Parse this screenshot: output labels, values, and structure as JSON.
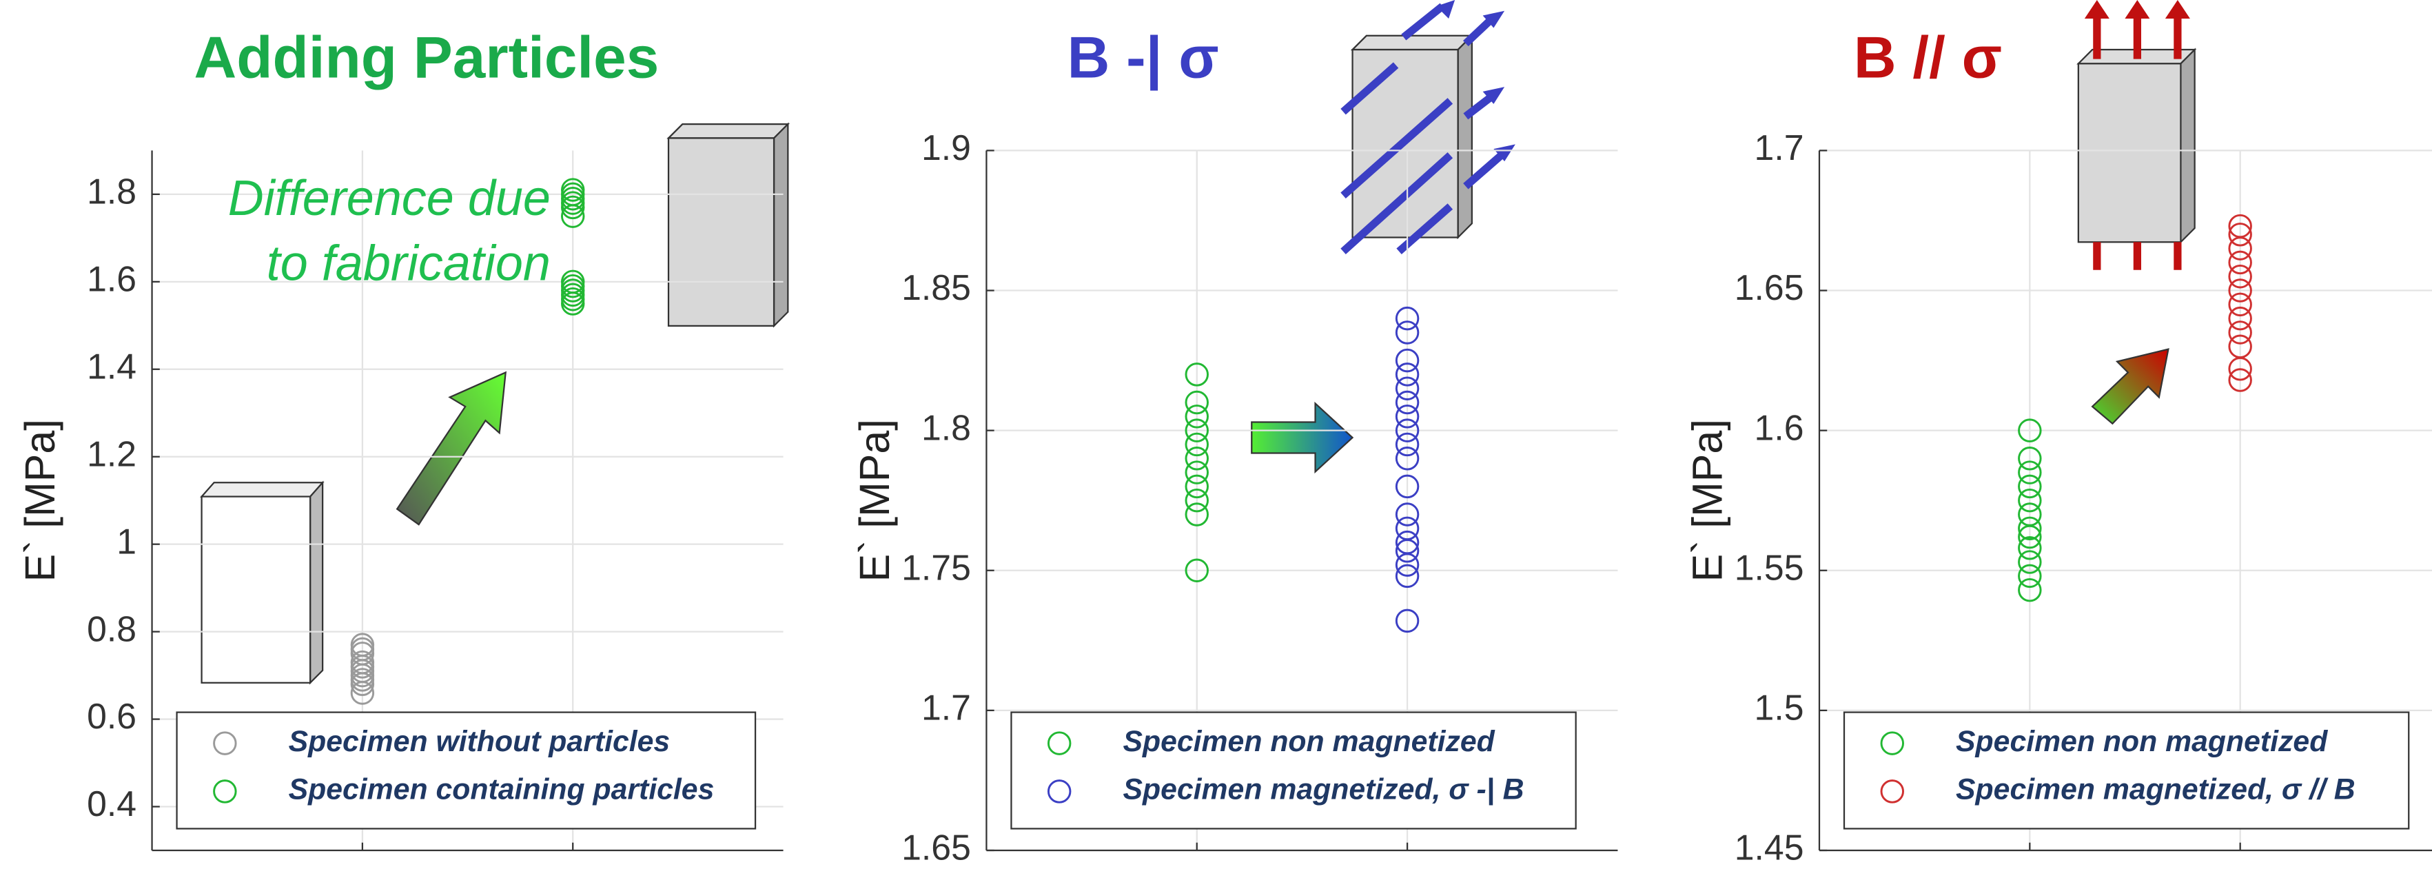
{
  "chart_data": [
    {
      "type": "scatter",
      "title": "Adding Particles",
      "title_color": "#1aaa4a",
      "ylabel": "E` [MPa]",
      "annotation_lines": [
        "Difference due",
        "to fabrication"
      ],
      "annotation_color": "#1fbf4f",
      "xlim": [
        0,
        3
      ],
      "xticks": [
        1,
        2
      ],
      "ylim": [
        0.3,
        1.9
      ],
      "yticks": [
        0.4,
        0.6,
        0.8,
        1,
        1.2,
        1.4,
        1.6,
        1.8
      ],
      "grid": true,
      "series": [
        {
          "name": "Specimen without particles",
          "color": "#9a9a9a",
          "x": [
            1,
            1,
            1,
            1,
            1,
            1,
            1,
            1,
            1,
            1
          ],
          "values": [
            0.66,
            0.68,
            0.69,
            0.7,
            0.71,
            0.72,
            0.73,
            0.75,
            0.76,
            0.77
          ]
        },
        {
          "name": "Specimen containing particles",
          "color": "#22b833",
          "x": [
            2,
            2,
            2,
            2,
            2,
            2,
            2,
            2,
            2,
            2,
            2,
            2
          ],
          "values": [
            1.55,
            1.56,
            1.57,
            1.58,
            1.59,
            1.6,
            1.75,
            1.77,
            1.78,
            1.79,
            1.8,
            1.81
          ]
        }
      ]
    },
    {
      "type": "scatter",
      "title": "B -| σ",
      "title_color": "#3b3fc4",
      "ylabel": "E` [MPa]",
      "xlim": [
        0,
        3
      ],
      "xticks": [
        1,
        2
      ],
      "ylim": [
        1.65,
        1.9
      ],
      "yticks": [
        1.65,
        1.7,
        1.75,
        1.8,
        1.85,
        1.9
      ],
      "grid": true,
      "series": [
        {
          "name": "Specimen non magnetized",
          "color": "#22b833",
          "x": [
            1,
            1,
            1,
            1,
            1,
            1,
            1,
            1,
            1,
            1,
            1
          ],
          "values": [
            1.75,
            1.77,
            1.775,
            1.78,
            1.785,
            1.79,
            1.795,
            1.8,
            1.805,
            1.81,
            1.82
          ]
        },
        {
          "name": "Specimen magnetized, σ -| B",
          "color": "#3b3fc4",
          "x": [
            2,
            2,
            2,
            2,
            2,
            2,
            2,
            2,
            2,
            2,
            2,
            2,
            2,
            2,
            2,
            2,
            2,
            2
          ],
          "values": [
            1.732,
            1.748,
            1.752,
            1.757,
            1.76,
            1.765,
            1.77,
            1.78,
            1.79,
            1.795,
            1.8,
            1.805,
            1.81,
            1.815,
            1.82,
            1.825,
            1.835,
            1.84
          ]
        }
      ]
    },
    {
      "type": "scatter",
      "title": "B // σ",
      "title_color": "#c01010",
      "ylabel": "E` [MPa]",
      "xlim": [
        0,
        3
      ],
      "xticks": [
        1,
        2
      ],
      "ylim": [
        1.45,
        1.7
      ],
      "yticks": [
        1.45,
        1.5,
        1.55,
        1.6,
        1.65,
        1.7
      ],
      "grid": true,
      "series": [
        {
          "name": "Specimen non magnetized",
          "color": "#22b833",
          "x": [
            1,
            1,
            1,
            1,
            1,
            1,
            1,
            1,
            1,
            1,
            1,
            1
          ],
          "values": [
            1.543,
            1.548,
            1.553,
            1.558,
            1.562,
            1.565,
            1.57,
            1.575,
            1.58,
            1.585,
            1.59,
            1.6
          ]
        },
        {
          "name": "Specimen magnetized, σ // B",
          "color": "#d03030",
          "x": [
            2,
            2,
            2,
            2,
            2,
            2,
            2,
            2,
            2,
            2,
            2,
            2
          ],
          "values": [
            1.618,
            1.622,
            1.63,
            1.635,
            1.64,
            1.645,
            1.65,
            1.655,
            1.66,
            1.665,
            1.67,
            1.673
          ]
        }
      ]
    }
  ]
}
